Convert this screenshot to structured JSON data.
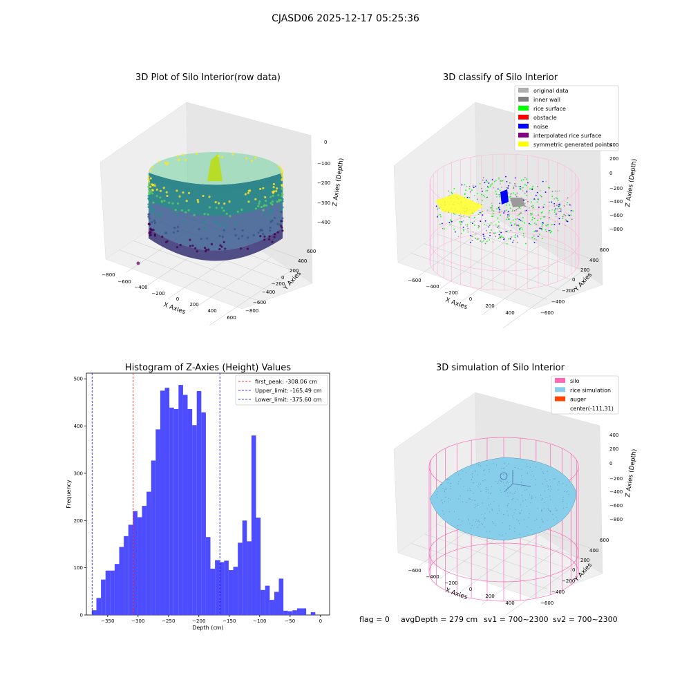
{
  "suptitle": "CJASD06 2025-12-17 05:25:36",
  "footer": {
    "flag": "flag = 0",
    "avg_depth": "avgDepth = 279 cm",
    "sv1": "sv1 = 700~2300",
    "sv2": "sv2 = 700~2300"
  },
  "colors": {
    "histogram_bars": "#4d4dff",
    "first_peak_line": "#ff0000",
    "limit_lines": "#0000ff",
    "silo_wire": "#ff69b4",
    "rice_surface": "#87ceeb",
    "auger": "#ff4500"
  },
  "chart_data": [
    {
      "type": "scatter",
      "subtype": "3d",
      "title": "3D Plot of Silo Interior(row data)",
      "xlabel": "X Axies",
      "ylabel": "Y Axies",
      "zlabel": "Z Axies (Depth)",
      "xticks": [
        "−800",
        "−600",
        "−400",
        "−200",
        "0",
        "200",
        "400",
        "600"
      ],
      "yticks": [
        "600",
        "400",
        "200",
        "0",
        "−200",
        "−400",
        "−600",
        "−800"
      ],
      "zticks": [
        "0",
        "−100",
        "−200",
        "−300",
        "−400"
      ],
      "colormap": "viridis"
    },
    {
      "type": "scatter",
      "subtype": "3d",
      "title": "3D classify of Silo Interior",
      "xlabel": "X Axies",
      "ylabel": "Y Axies",
      "zlabel": "Z Axies (Depth)",
      "xticks": [
        "−600",
        "−400",
        "−200",
        "0",
        "200",
        "400"
      ],
      "yticks": [
        "600",
        "400",
        "200",
        "0",
        "−200",
        "−400",
        "−600"
      ],
      "zticks": [
        "400",
        "200",
        "0",
        "−200",
        "−400",
        "−600",
        "−800"
      ],
      "legend_placement": "top-right",
      "legend": [
        {
          "label": "original data",
          "color": "#b0b0b0"
        },
        {
          "label": "inner wall",
          "color": "#808080"
        },
        {
          "label": "rice surface",
          "color": "#00ff00"
        },
        {
          "label": "obstacle",
          "color": "#ff0000"
        },
        {
          "label": "noise",
          "color": "#0000ff"
        },
        {
          "label": "interpolated rice surface",
          "color": "#800080"
        },
        {
          "label": "symmetric generated points",
          "color": "#ffff00"
        }
      ]
    },
    {
      "type": "bar",
      "subtype": "histogram",
      "title": "Histogram of Z-Axies (Height) Values",
      "xlabel": "Depth (cm)",
      "ylabel": "Frequency",
      "xlim": [
        -385,
        15
      ],
      "ylim": [
        0,
        512
      ],
      "xticks": [
        -350,
        -300,
        -250,
        -200,
        -150,
        -100,
        -50,
        0
      ],
      "yticks": [
        0,
        100,
        200,
        300,
        400,
        500
      ],
      "bin_width": 7.5,
      "bin_start": -376,
      "values": [
        10,
        36,
        75,
        94,
        94,
        108,
        144,
        167,
        191,
        220,
        207,
        231,
        261,
        327,
        393,
        475,
        481,
        439,
        436,
        487,
        466,
        436,
        402,
        474,
        429,
        165,
        98,
        116,
        112,
        115,
        95,
        102,
        153,
        200,
        156,
        380,
        206,
        53,
        62,
        32,
        49,
        77,
        9,
        8,
        10,
        14,
        14,
        0,
        6
      ],
      "legend_placement": "top-right",
      "lines": [
        {
          "label": "first_peak: -308.06 cm",
          "x": -308.06,
          "color": "#ff0000"
        },
        {
          "label": "Upper_limit: -165.49 cm",
          "x": -165.49,
          "color": "#0000ff"
        },
        {
          "label": "Lower_limit: -375.60 cm",
          "x": -375.6,
          "color": "#0000ff"
        }
      ]
    },
    {
      "type": "scatter",
      "subtype": "3d-surface",
      "title": "3D simulation of Silo Interior",
      "xlabel": "X Axies",
      "ylabel": "Y Axies",
      "zlabel": "Z Axies (Depth)",
      "xticks": [
        "−600",
        "−400",
        "−200",
        "0",
        "200",
        "400"
      ],
      "yticks": [
        "600",
        "400",
        "200",
        "0",
        "−200",
        "−400",
        "−600"
      ],
      "zticks": [
        "400",
        "200",
        "0",
        "−200",
        "−400",
        "−600",
        "−800"
      ],
      "legend_placement": "top-right",
      "legend": [
        {
          "label": "silo",
          "color": "#ff69b4"
        },
        {
          "label": "rice simulation",
          "color": "#87ceeb"
        },
        {
          "label": "auger",
          "color": "#ff4500"
        },
        {
          "label": "center(-111,31)",
          "color": ""
        }
      ]
    }
  ]
}
